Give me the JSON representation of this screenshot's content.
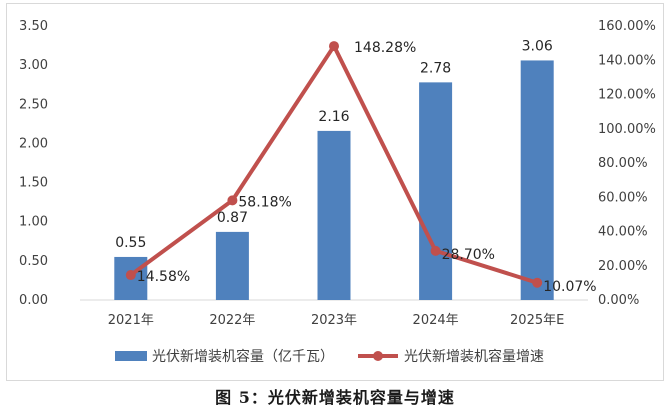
{
  "chart_data": {
    "type": "bar",
    "categories": [
      "2021年",
      "2022年",
      "2023年",
      "2024年",
      "2025年E"
    ],
    "series": [
      {
        "name": "光伏新增装机容量（亿千瓦）",
        "type": "bar",
        "axis": "left",
        "color": "#4f81bd",
        "values": [
          0.55,
          0.87,
          2.16,
          2.78,
          3.06
        ],
        "labels": [
          "0.55",
          "0.87",
          "2.16",
          "2.78",
          "3.06"
        ]
      },
      {
        "name": "光伏新增装机容量增速",
        "type": "line",
        "axis": "right",
        "color": "#c0504d",
        "values": [
          14.58,
          58.18,
          148.28,
          28.7,
          10.07
        ],
        "labels": [
          "14.58%",
          "58.18%",
          "148.28%",
          "28.70%",
          "10.07%"
        ]
      }
    ],
    "y_left": {
      "ylim": [
        0,
        3.5
      ],
      "ticks": [
        "0.00",
        "0.50",
        "1.00",
        "1.50",
        "2.00",
        "2.50",
        "3.00",
        "3.50"
      ]
    },
    "y_right": {
      "ylim": [
        0,
        160
      ],
      "ticks": [
        "0.00%",
        "20.00%",
        "40.00%",
        "60.00%",
        "80.00%",
        "100.00%",
        "120.00%",
        "140.00%",
        "160.00%"
      ]
    },
    "grid": false,
    "legend_position": "bottom"
  },
  "caption": "图 5：光伏新增装机容量与增速"
}
